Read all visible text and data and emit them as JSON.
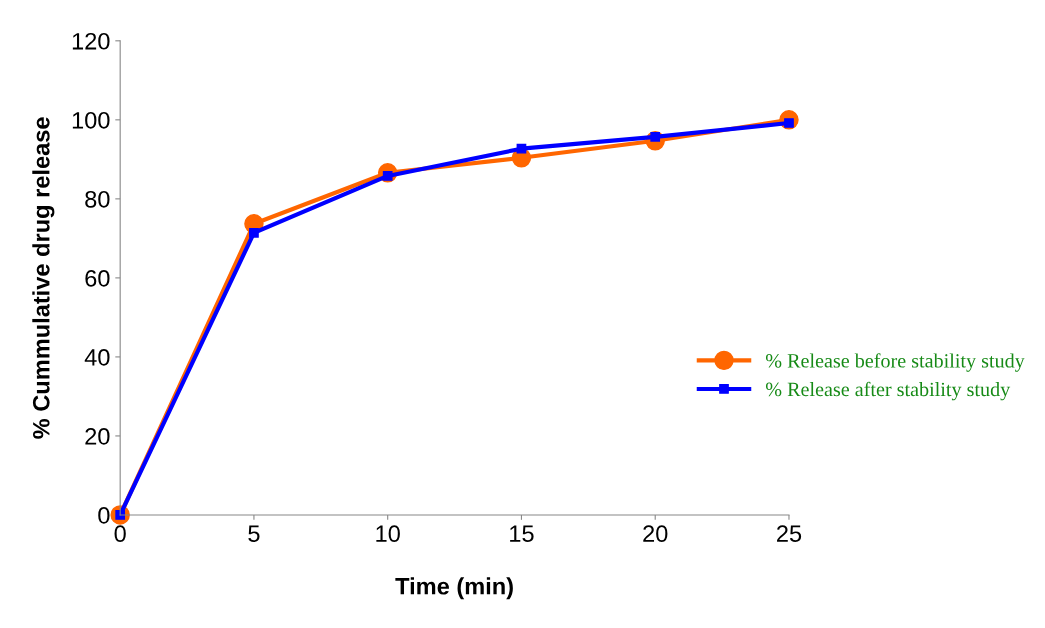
{
  "chart_data": {
    "type": "line",
    "xlabel": "Time (min)",
    "ylabel": "% Cummulative drug release",
    "x": [
      0,
      5,
      10,
      15,
      20,
      25
    ],
    "series": [
      {
        "name": "% Release before stability study",
        "color": "#ff6600",
        "marker": "circle",
        "values": [
          0,
          73.7,
          86.6,
          90.4,
          94.7,
          100
        ]
      },
      {
        "name": "% Release after stability study",
        "color": "#0000ff",
        "marker": "square",
        "values": [
          0,
          71.4,
          85.8,
          92.7,
          95.7,
          99.2
        ]
      }
    ],
    "xlim": [
      0,
      25
    ],
    "xticks": [
      0,
      5,
      10,
      15,
      20,
      25
    ],
    "ylim": [
      0,
      120
    ],
    "yticks": [
      0,
      20,
      40,
      60,
      80,
      100,
      120
    ],
    "grid": false,
    "legend": "right"
  }
}
